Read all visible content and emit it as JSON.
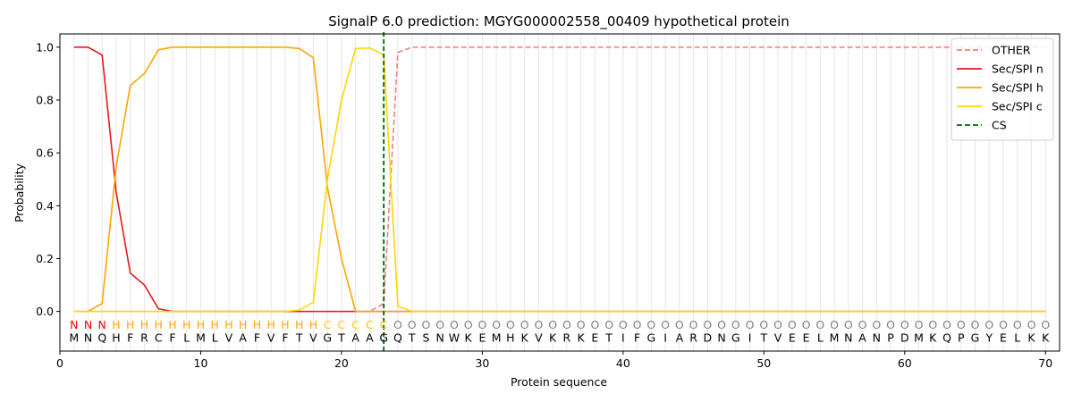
{
  "chart_data": {
    "type": "line",
    "title": "SignalP 6.0 prediction: MGYG000002558_00409 hypothetical protein",
    "xlabel": "Protein sequence",
    "ylabel": "Probability",
    "xlim": [
      0,
      71
    ],
    "ylim": [
      -0.15,
      1.05
    ],
    "x_ticks": [
      "0",
      "10",
      "20",
      "30",
      "40",
      "50",
      "60",
      "70"
    ],
    "y_ticks": [
      "0.0",
      "0.2",
      "0.4",
      "0.6",
      "0.8",
      "1.0"
    ],
    "legend_position": "top-right",
    "sequence": [
      "M",
      "N",
      "Q",
      "H",
      "F",
      "R",
      "C",
      "F",
      "L",
      "M",
      "L",
      "V",
      "A",
      "F",
      "V",
      "F",
      "T",
      "V",
      "G",
      "T",
      "A",
      "A",
      "G",
      "Q",
      "T",
      "S",
      "N",
      "W",
      "K",
      "E",
      "M",
      "H",
      "K",
      "V",
      "K",
      "R",
      "K",
      "E",
      "T",
      "I",
      "F",
      "G",
      "I",
      "A",
      "R",
      "D",
      "N",
      "G",
      "I",
      "T",
      "V",
      "E",
      "E",
      "L",
      "M",
      "N",
      "A",
      "N",
      "P",
      "D",
      "M",
      "K",
      "Q",
      "P",
      "G",
      "Y",
      "E",
      "L",
      "K",
      "K"
    ],
    "region_labels": [
      "N",
      "N",
      "N",
      "H",
      "H",
      "H",
      "H",
      "H",
      "H",
      "H",
      "H",
      "H",
      "H",
      "H",
      "H",
      "H",
      "H",
      "H",
      "C",
      "C",
      "C",
      "C",
      "C",
      "O",
      "O",
      "O",
      "O",
      "O",
      "O",
      "O",
      "O",
      "O",
      "O",
      "O",
      "O",
      "O",
      "O",
      "O",
      "O",
      "O",
      "O",
      "O",
      "O",
      "O",
      "O",
      "O",
      "O",
      "O",
      "O",
      "O",
      "O",
      "O",
      "O",
      "O",
      "O",
      "O",
      "O",
      "O",
      "O",
      "O",
      "O",
      "O",
      "O",
      "O",
      "O",
      "O",
      "O",
      "O",
      "O",
      "O"
    ],
    "region_colors": {
      "N": "#ff0000",
      "H": "#ffa500",
      "C": "#ffc800",
      "O": "#808080"
    },
    "series": [
      {
        "name": "OTHER",
        "color": "#f08080",
        "dash": "dashed",
        "values": [
          0,
          0,
          0,
          0,
          0,
          0,
          0,
          0,
          0,
          0,
          0,
          0,
          0,
          0,
          0,
          0,
          0,
          0,
          0,
          0,
          0,
          0,
          0.03,
          0.98,
          1,
          1,
          1,
          1,
          1,
          1,
          1,
          1,
          1,
          1,
          1,
          1,
          1,
          1,
          1,
          1,
          1,
          1,
          1,
          1,
          1,
          1,
          1,
          1,
          1,
          1,
          1,
          1,
          1,
          1,
          1,
          1,
          1,
          1,
          1,
          1,
          1,
          1,
          1,
          1,
          1,
          1,
          1,
          1,
          1,
          1
        ]
      },
      {
        "name": "Sec/SPI n",
        "color": "#e31a1c",
        "dash": "solid",
        "values": [
          1,
          1,
          0.97,
          0.45,
          0.145,
          0.1,
          0.01,
          0,
          0,
          0,
          0,
          0,
          0,
          0,
          0,
          0,
          0,
          0,
          0,
          0,
          0,
          0,
          0,
          0,
          0,
          0,
          0,
          0,
          0,
          0,
          0,
          0,
          0,
          0,
          0,
          0,
          0,
          0,
          0,
          0,
          0,
          0,
          0,
          0,
          0,
          0,
          0,
          0,
          0,
          0,
          0,
          0,
          0,
          0,
          0,
          0,
          0,
          0,
          0,
          0,
          0,
          0,
          0,
          0,
          0,
          0,
          0,
          0,
          0,
          0
        ]
      },
      {
        "name": "Sec/SPI h",
        "color": "#ffa500",
        "dash": "solid",
        "values": [
          0,
          0,
          0.03,
          0.55,
          0.855,
          0.9,
          0.99,
          1,
          1,
          1,
          1,
          1,
          1,
          1,
          1,
          1,
          0.995,
          0.96,
          0.47,
          0.2,
          0,
          0,
          0,
          0,
          0,
          0,
          0,
          0,
          0,
          0,
          0,
          0,
          0,
          0,
          0,
          0,
          0,
          0,
          0,
          0,
          0,
          0,
          0,
          0,
          0,
          0,
          0,
          0,
          0,
          0,
          0,
          0,
          0,
          0,
          0,
          0,
          0,
          0,
          0,
          0,
          0,
          0,
          0,
          0,
          0,
          0,
          0,
          0,
          0,
          0
        ]
      },
      {
        "name": "Sec/SPI c",
        "color": "#ffd700",
        "dash": "solid",
        "values": [
          0,
          0,
          0,
          0,
          0,
          0,
          0,
          0,
          0,
          0,
          0,
          0,
          0,
          0,
          0,
          0,
          0.005,
          0.035,
          0.5,
          0.8,
          0.995,
          0.997,
          0.97,
          0.02,
          0,
          0,
          0,
          0,
          0,
          0,
          0,
          0,
          0,
          0,
          0,
          0,
          0,
          0,
          0,
          0,
          0,
          0,
          0,
          0,
          0,
          0,
          0,
          0,
          0,
          0,
          0,
          0,
          0,
          0,
          0,
          0,
          0,
          0,
          0,
          0,
          0,
          0,
          0,
          0,
          0,
          0,
          0,
          0,
          0,
          0
        ]
      }
    ],
    "cleavage_site": {
      "name": "CS",
      "x": 23,
      "color": "#006400",
      "dash": "dashed"
    }
  }
}
